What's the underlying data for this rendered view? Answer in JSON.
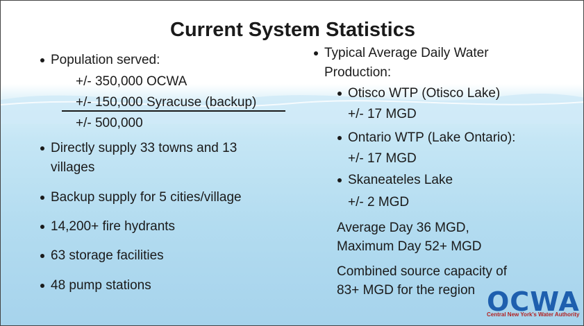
{
  "slide": {
    "title": "Current System Statistics",
    "left_column": {
      "lines": [
        "Population served:",
        "+/- 350,000 OCWA",
        "+/- 150,000 Syracuse (backup)",
        "+/- 500,000",
        "Directly supply 33 towns and 13",
        "villages",
        "Backup supply for 5 cities/village",
        "14,200+ fire hydrants",
        "63 storage facilities",
        "48 pump stations"
      ]
    },
    "right_column": {
      "lines": [
        "Typical Average Daily Water",
        "Production:",
        "Otisco WTP (Otisco Lake)",
        "+/- 17 MGD",
        "Ontario WTP (Lake Ontario):",
        "+/- 17 MGD",
        "Skaneateles Lake",
        "+/- 2 MGD",
        "Average Day 36 MGD,",
        "Maximum Day 52+ MGD",
        "Combined source capacity of",
        "83+ MGD for the region"
      ]
    },
    "logo": {
      "name": "OCWA",
      "tagline": "Central New York's Water Authority"
    }
  }
}
